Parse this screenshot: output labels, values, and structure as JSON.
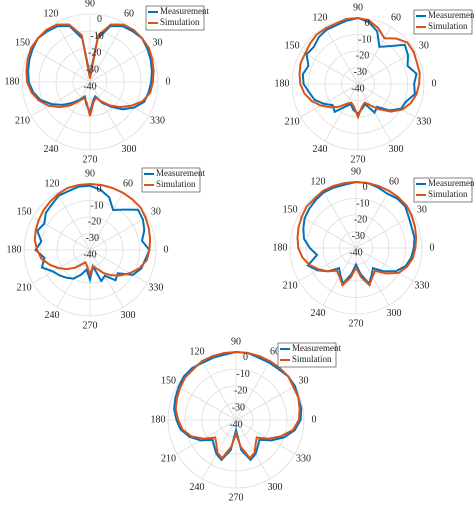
{
  "chart_data": [
    {
      "type": "polar",
      "theta": [
        0,
        10,
        20,
        30,
        40,
        50,
        60,
        70,
        80,
        90,
        100,
        110,
        120,
        130,
        140,
        150,
        160,
        170,
        180,
        190,
        200,
        210,
        220,
        230,
        240,
        250,
        260,
        270,
        280,
        290,
        300,
        310,
        320,
        330,
        340,
        350
      ],
      "thetaticks": [
        0,
        30,
        60,
        90,
        120,
        150,
        180,
        210,
        240,
        270,
        300,
        330
      ],
      "rlim": [
        -40,
        0
      ],
      "rticks": [
        0,
        -10,
        -20,
        -30,
        -40
      ],
      "grid": true,
      "legend": "upper right",
      "series": [
        {
          "name": "Measurement",
          "color": "#0072bd",
          "values": [
            -4,
            -3,
            -2,
            -1,
            0,
            -1,
            -2,
            -5,
            -14,
            -36,
            -14,
            -5,
            -2,
            -1,
            0,
            -1,
            -2,
            -3,
            -4,
            -6,
            -9,
            -14,
            -19,
            -24,
            -28,
            -31,
            -27,
            -22,
            -29,
            -31,
            -26,
            -21,
            -15,
            -10,
            -6,
            -5
          ]
        },
        {
          "name": "Simulation",
          "color": "#d95319",
          "values": [
            -3,
            -2,
            -1,
            0,
            0,
            0,
            -1,
            -4,
            -12,
            -38,
            -12,
            -4,
            -1,
            0,
            0,
            0,
            -1,
            -2,
            -3,
            -5,
            -8,
            -12,
            -17,
            -22,
            -27,
            -30,
            -28,
            -20,
            -28,
            -30,
            -27,
            -22,
            -17,
            -12,
            -7,
            -4
          ]
        }
      ]
    },
    {
      "type": "polar",
      "theta": [
        0,
        10,
        20,
        30,
        40,
        50,
        60,
        70,
        80,
        90,
        100,
        110,
        120,
        130,
        140,
        150,
        160,
        170,
        180,
        190,
        200,
        210,
        220,
        230,
        240,
        250,
        260,
        270,
        280,
        290,
        300,
        310,
        320,
        330,
        340,
        350
      ],
      "thetaticks": [
        0,
        30,
        60,
        90,
        120,
        150,
        180,
        210,
        240,
        270,
        300,
        330
      ],
      "rlim": [
        -40,
        0
      ],
      "rticks": [
        0,
        -10,
        -20,
        -30,
        -40
      ],
      "grid": true,
      "legend": "upper right",
      "series": [
        {
          "name": "Measurement",
          "color": "#0072bd",
          "values": [
            -6,
            -4,
            -8,
            -5,
            -3,
            -10,
            -14,
            -6,
            -2,
            0,
            -1,
            -2,
            -2,
            -3,
            -5,
            -4,
            -8,
            -6,
            -7,
            -10,
            -12,
            -16,
            -20,
            -18,
            -24,
            -27,
            -24,
            -22,
            -25,
            -27,
            -20,
            -22,
            -15,
            -10,
            -9,
            -5
          ]
        },
        {
          "name": "Simulation",
          "color": "#d95319",
          "values": [
            -3,
            -2,
            -2,
            -1,
            -1,
            -4,
            -8,
            -4,
            -1,
            0,
            0,
            -1,
            -1,
            -1,
            -2,
            -3,
            -3,
            -4,
            -5,
            -7,
            -10,
            -14,
            -18,
            -22,
            -26,
            -28,
            -26,
            -20,
            -26,
            -28,
            -25,
            -20,
            -14,
            -9,
            -6,
            -4
          ]
        }
      ]
    },
    {
      "type": "polar",
      "theta": [
        0,
        10,
        20,
        30,
        40,
        50,
        60,
        70,
        80,
        90,
        100,
        110,
        120,
        130,
        140,
        150,
        160,
        170,
        180,
        190,
        200,
        210,
        220,
        230,
        240,
        250,
        260,
        270,
        280,
        290,
        300,
        310,
        320,
        330,
        340,
        350
      ],
      "thetaticks": [
        0,
        30,
        60,
        90,
        120,
        150,
        180,
        210,
        240,
        270,
        300,
        330
      ],
      "rlim": [
        -40,
        0
      ],
      "rticks": [
        0,
        -10,
        -20,
        -30,
        -40
      ],
      "grid": true,
      "legend": "upper right",
      "series": [
        {
          "name": "Measurement",
          "color": "#0072bd",
          "values": [
            -4,
            -8,
            -5,
            -3,
            -2,
            -8,
            -12,
            -6,
            -3,
            -1,
            -1,
            -2,
            -2,
            -4,
            -5,
            -8,
            -6,
            -10,
            -7,
            -12,
            -9,
            -14,
            -16,
            -18,
            -20,
            -24,
            -28,
            -22,
            -30,
            -20,
            -22,
            -16,
            -18,
            -10,
            -7,
            -6
          ]
        },
        {
          "name": "Simulation",
          "color": "#d95319",
          "values": [
            -4,
            -3,
            -2,
            -1,
            0,
            0,
            0,
            0,
            0,
            0,
            0,
            0,
            -1,
            -2,
            -3,
            -4,
            -5,
            -6,
            -8,
            -10,
            -14,
            -18,
            -22,
            -26,
            -30,
            -32,
            -30,
            -25,
            -30,
            -28,
            -24,
            -20,
            -16,
            -12,
            -8,
            -5
          ]
        }
      ]
    },
    {
      "type": "polar",
      "theta": [
        0,
        10,
        20,
        30,
        40,
        50,
        60,
        70,
        80,
        90,
        100,
        110,
        120,
        130,
        140,
        150,
        160,
        170,
        180,
        190,
        200,
        210,
        220,
        230,
        240,
        250,
        260,
        270,
        280,
        290,
        300,
        310,
        320,
        330,
        340,
        350
      ],
      "thetaticks": [
        0,
        30,
        60,
        90,
        120,
        150,
        180,
        210,
        240,
        270,
        300,
        330
      ],
      "rlim": [
        -40,
        0
      ],
      "rticks": [
        0,
        -10,
        -20,
        -30,
        -40
      ],
      "grid": true,
      "legend": "upper right",
      "series": [
        {
          "name": "Measurement",
          "color": "#0072bd",
          "values": [
            -5,
            -4,
            -4,
            -3,
            -1,
            -1,
            -2,
            -1,
            0,
            0,
            -1,
            -1,
            -1,
            -2,
            -3,
            -4,
            -6,
            -8,
            -12,
            -16,
            -9,
            -13,
            -18,
            -24,
            -21,
            -17,
            -24,
            -30,
            -24,
            -17,
            -21,
            -24,
            -18,
            -12,
            -8,
            -6
          ]
        },
        {
          "name": "Simulation",
          "color": "#d95319",
          "values": [
            -4,
            -3,
            -2,
            -1,
            0,
            0,
            0,
            0,
            0,
            0,
            0,
            0,
            0,
            -1,
            -1,
            -2,
            -3,
            -4,
            -5,
            -7,
            -10,
            -14,
            -18,
            -22,
            -20,
            -16,
            -22,
            -28,
            -22,
            -16,
            -20,
            -22,
            -16,
            -10,
            -7,
            -5
          ]
        }
      ]
    },
    {
      "type": "polar",
      "theta": [
        0,
        10,
        20,
        30,
        40,
        50,
        60,
        70,
        80,
        90,
        100,
        110,
        120,
        130,
        140,
        150,
        160,
        170,
        180,
        190,
        200,
        210,
        220,
        230,
        240,
        250,
        260,
        270,
        280,
        290,
        300,
        310,
        320,
        330,
        340,
        350
      ],
      "thetaticks": [
        0,
        30,
        60,
        90,
        120,
        150,
        180,
        210,
        240,
        270,
        300,
        330
      ],
      "rlim": [
        -40,
        0
      ],
      "rticks": [
        0,
        -10,
        -20,
        -30,
        -40
      ],
      "grid": true,
      "legend": "upper right",
      "series": [
        {
          "name": "Measurement",
          "color": "#0072bd",
          "values": [
            -2,
            -1,
            -1,
            0,
            0,
            -1,
            -1,
            -1,
            0,
            0,
            -1,
            -1,
            -1,
            0,
            0,
            -1,
            -2,
            -3,
            -5,
            -7,
            -11,
            -16,
            -22,
            -20,
            -17,
            -15,
            -22,
            -34,
            -22,
            -15,
            -17,
            -20,
            -22,
            -16,
            -10,
            -5
          ]
        },
        {
          "name": "Simulation",
          "color": "#d95319",
          "values": [
            -3,
            -2,
            -1,
            -1,
            0,
            0,
            0,
            0,
            0,
            0,
            0,
            0,
            0,
            -1,
            -1,
            -2,
            -3,
            -4,
            -6,
            -8,
            -12,
            -18,
            -24,
            -22,
            -18,
            -16,
            -24,
            -32,
            -24,
            -16,
            -18,
            -22,
            -24,
            -18,
            -12,
            -6
          ]
        }
      ]
    }
  ]
}
